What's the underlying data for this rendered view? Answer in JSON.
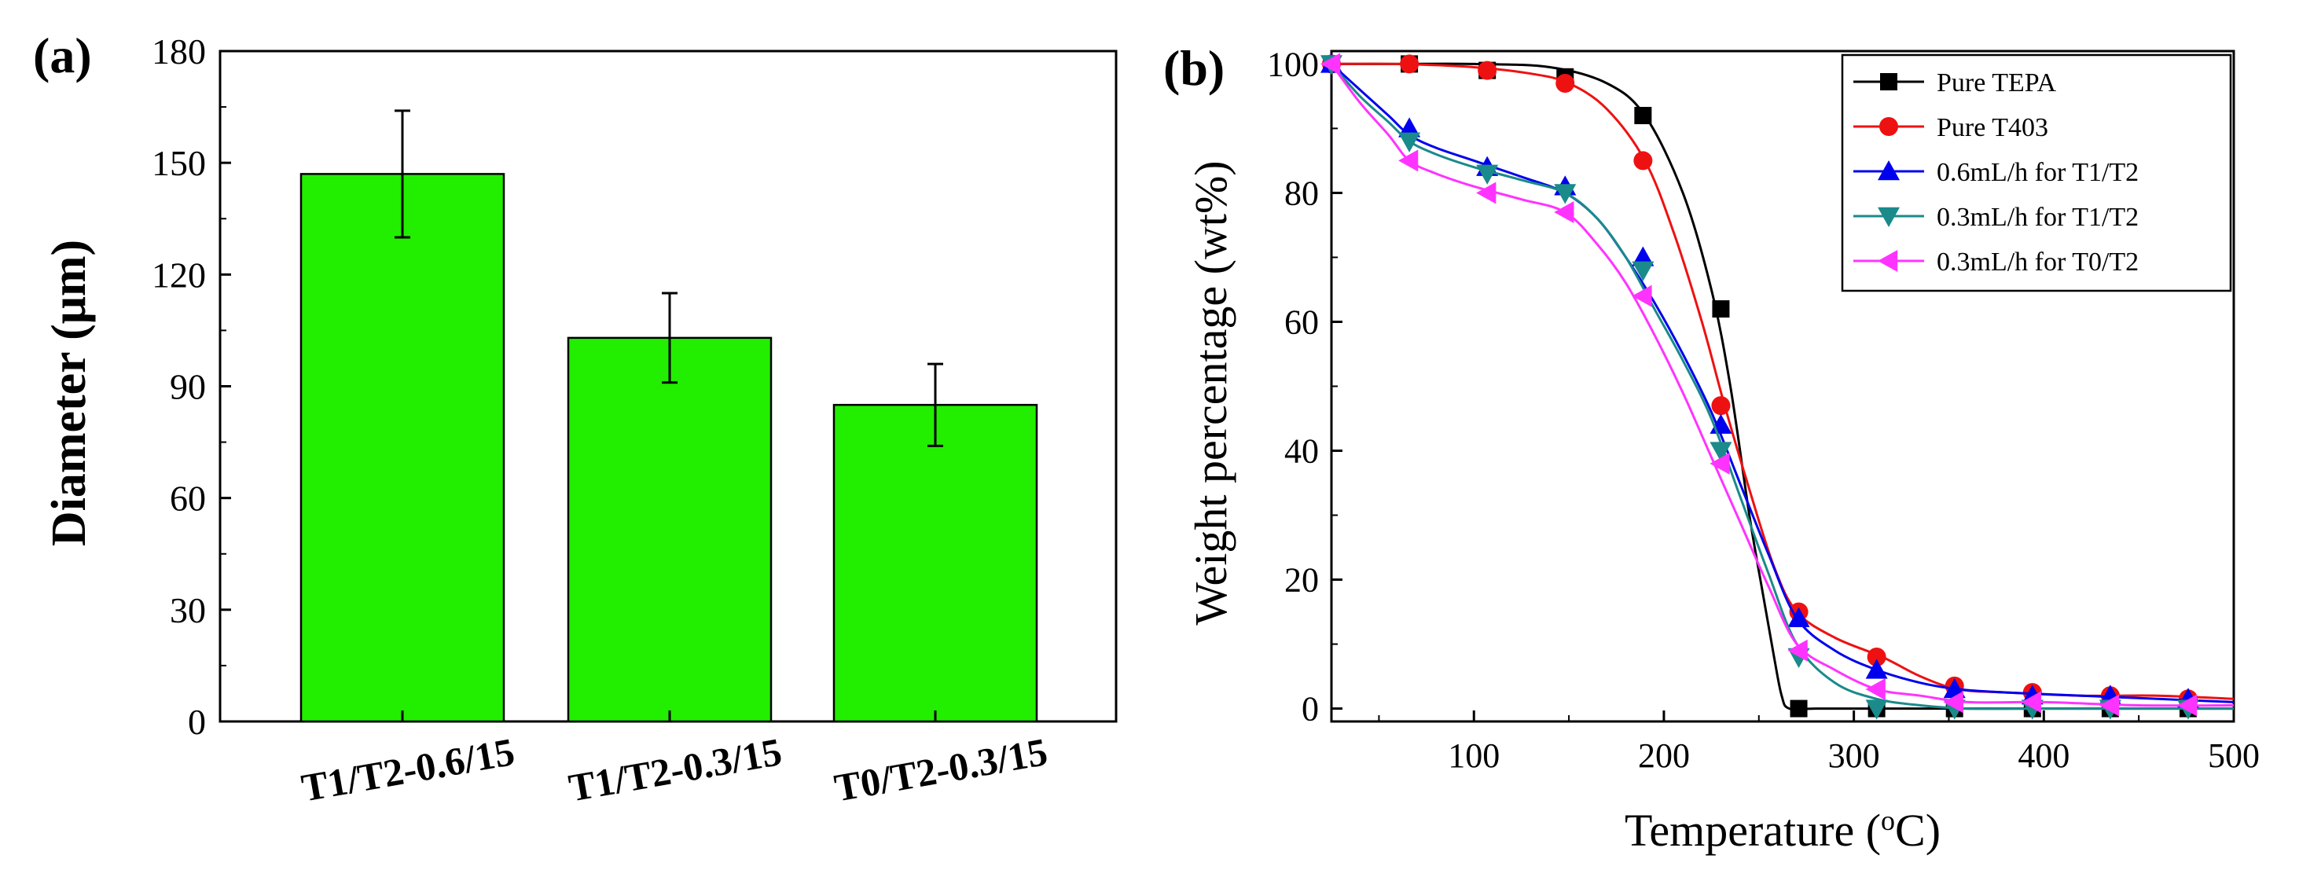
{
  "chart_data": [
    {
      "type": "bar",
      "panel_label": "(a)",
      "ylabel": "Diameter (μm)",
      "ylabel_main": "Diameter (",
      "ylabel_unit": "μm",
      "ylabel_close": ")",
      "ylim": [
        0,
        180
      ],
      "yticks": [
        0,
        30,
        60,
        90,
        120,
        150,
        180
      ],
      "categories": [
        "T1/T2-0.6/15",
        "T1/T2-0.3/15",
        "T0/T2-0.3/15"
      ],
      "values": [
        147,
        103,
        85
      ],
      "errors": [
        17,
        12,
        11
      ],
      "bar_color": "#22ee00",
      "grid": false
    },
    {
      "type": "line",
      "panel_label": "(b)",
      "xlabel": "Temperature (°C)",
      "xlabel_main": "Temperature (",
      "xlabel_sup": "o",
      "xlabel_unit": "C)",
      "ylabel": "Weight percentage (wt%)",
      "xlim": [
        25,
        500
      ],
      "ylim": [
        -2,
        102
      ],
      "xticks": [
        100,
        200,
        300,
        400,
        500
      ],
      "yticks": [
        0,
        20,
        40,
        60,
        80,
        100
      ],
      "legend_position": "top-right",
      "grid": false,
      "series": [
        {
          "name": "Pure TEPA",
          "color": "#000000",
          "marker": "square",
          "x": [
            25,
            60,
            100,
            140,
            170,
            190,
            210,
            225,
            235,
            245,
            252,
            258,
            262,
            266,
            280,
            320,
            360,
            400,
            440,
            480,
            500
          ],
          "y": [
            100,
            100,
            100,
            99.5,
            97,
            92,
            80,
            65,
            50,
            30,
            18,
            8,
            2,
            0,
            0,
            0,
            0,
            0,
            0,
            0,
            0
          ],
          "marker_x": [
            25,
            66,
            107,
            148,
            189,
            230,
            271,
            312,
            353,
            394,
            435,
            476
          ],
          "marker_y": [
            100,
            100,
            99,
            98,
            92,
            62,
            0,
            0,
            0,
            0,
            0,
            0
          ]
        },
        {
          "name": "Pure T403",
          "color": "#ee1111",
          "marker": "circle",
          "x": [
            25,
            60,
            100,
            130,
            150,
            170,
            190,
            205,
            220,
            232,
            245,
            258,
            270,
            290,
            315,
            335,
            355,
            380,
            420,
            460,
            500
          ],
          "y": [
            100,
            100,
            99.5,
            98.5,
            97,
            93,
            85,
            74,
            60,
            47,
            34,
            22,
            15,
            11,
            8,
            5,
            3,
            2.5,
            2,
            2,
            1.5
          ],
          "marker_x": [
            25,
            66,
            107,
            148,
            189,
            230,
            271,
            312,
            353,
            394,
            435,
            476
          ],
          "marker_y": [
            100,
            100,
            99,
            97,
            85,
            47,
            15,
            8,
            3.5,
            2.5,
            2,
            1.5
          ]
        },
        {
          "name": "0.6mL/h for T1/T2",
          "color": "#0000ee",
          "marker": "triangle-up",
          "x": [
            25,
            40,
            55,
            66,
            80,
            100,
            125,
            148,
            165,
            180,
            195,
            210,
            225,
            240,
            255,
            270,
            290,
            312,
            335,
            355,
            380,
            420,
            460,
            500
          ],
          "y": [
            100,
            96,
            92,
            89,
            87,
            85,
            82.5,
            80,
            76,
            70,
            63,
            55,
            46,
            35,
            24,
            14,
            9,
            6,
            4,
            3,
            2.5,
            2,
            1.5,
            1
          ],
          "marker_x": [
            25,
            66,
            107,
            148,
            189,
            230,
            271,
            312,
            353,
            394,
            435,
            476
          ],
          "marker_y": [
            100,
            90,
            84,
            81,
            70,
            44,
            14,
            6,
            3,
            2,
            2,
            1.5
          ]
        },
        {
          "name": "0.3mL/h for T1/T2",
          "color": "#1a8a8a",
          "marker": "triangle-down",
          "x": [
            25,
            40,
            55,
            66,
            80,
            100,
            125,
            148,
            165,
            180,
            195,
            210,
            225,
            240,
            255,
            270,
            290,
            312,
            335,
            360,
            400,
            450,
            500
          ],
          "y": [
            100,
            95,
            91,
            88,
            86,
            84,
            82,
            80,
            76,
            70,
            62,
            54,
            45,
            33,
            21,
            10,
            4,
            1.5,
            0.5,
            0,
            0,
            0,
            0
          ],
          "marker_x": [
            25,
            66,
            107,
            148,
            189,
            230,
            271,
            312,
            353,
            394,
            435,
            476
          ],
          "marker_y": [
            100,
            88,
            83,
            80,
            68,
            40,
            8,
            0,
            0,
            0,
            0,
            0
          ]
        },
        {
          "name": "0.3mL/h for T0/T2",
          "color": "#ff33ff",
          "marker": "triangle-left",
          "x": [
            25,
            40,
            55,
            66,
            80,
            100,
            125,
            148,
            165,
            180,
            195,
            210,
            225,
            240,
            255,
            270,
            290,
            312,
            335,
            360,
            400,
            450,
            500
          ],
          "y": [
            100,
            94,
            89,
            85,
            83,
            81,
            79,
            77,
            72,
            66,
            58,
            49,
            39,
            29,
            19,
            10,
            6,
            3,
            2,
            1,
            1,
            0.5,
            0.5
          ],
          "marker_x": [
            25,
            66,
            107,
            148,
            189,
            230,
            271,
            312,
            353,
            394,
            435,
            476
          ],
          "marker_y": [
            100,
            85,
            80,
            77,
            64,
            38,
            9,
            3,
            1,
            1,
            0.5,
            0.5
          ]
        }
      ]
    }
  ]
}
